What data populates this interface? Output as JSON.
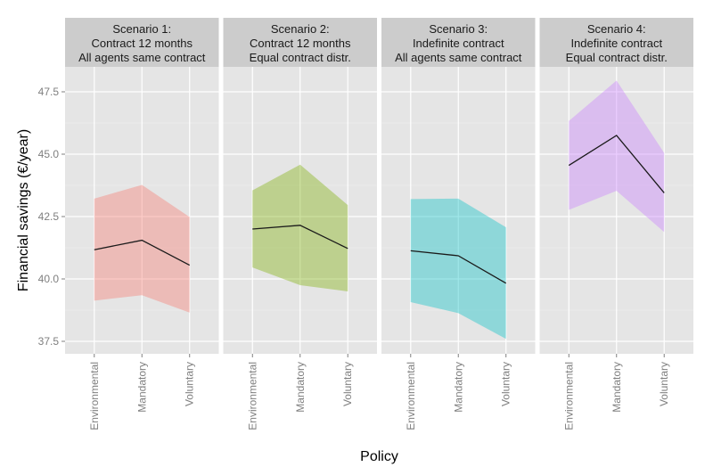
{
  "chart_data": {
    "type": "line",
    "xlabel": "Policy",
    "ylabel": "Financial savings (€/year)",
    "categories": [
      "Environmental",
      "Mandatory",
      "Voluntary"
    ],
    "ylim": [
      37.0,
      48.5
    ],
    "yticks": [
      37.5,
      40.0,
      42.5,
      45.0,
      47.5
    ],
    "ytick_labels": [
      "37.5",
      "40.0",
      "42.5",
      "45.0",
      "47.5"
    ],
    "grid": true,
    "panels": [
      {
        "strip": [
          "Scenario 1:",
          "Contract 12 months",
          "All agents same contract"
        ],
        "fill": "#F8766D",
        "mean": [
          41.17,
          41.55,
          40.55
        ],
        "lower": [
          39.13,
          39.35,
          38.65
        ],
        "upper": [
          43.22,
          43.77,
          42.48
        ]
      },
      {
        "strip": [
          "Scenario 2:",
          "Contract 12 months",
          "Equal contract distr."
        ],
        "fill": "#7CAE00",
        "mean": [
          42.0,
          42.15,
          41.22
        ],
        "lower": [
          40.46,
          39.75,
          39.5
        ],
        "upper": [
          43.55,
          44.58,
          42.96
        ]
      },
      {
        "strip": [
          "Scenario 3:",
          "Indefinite contract",
          "All agents same contract"
        ],
        "fill": "#00BFC4",
        "mean": [
          41.13,
          40.93,
          39.83
        ],
        "lower": [
          39.07,
          38.63,
          37.6
        ],
        "upper": [
          43.2,
          43.22,
          42.07
        ]
      },
      {
        "strip": [
          "Scenario 4:",
          "Indefinite contract",
          "Equal contract distr."
        ],
        "fill": "#C77CFF",
        "mean": [
          44.55,
          45.75,
          43.45
        ],
        "lower": [
          42.77,
          43.53,
          41.88
        ],
        "upper": [
          46.33,
          47.95,
          45.05
        ]
      }
    ]
  }
}
